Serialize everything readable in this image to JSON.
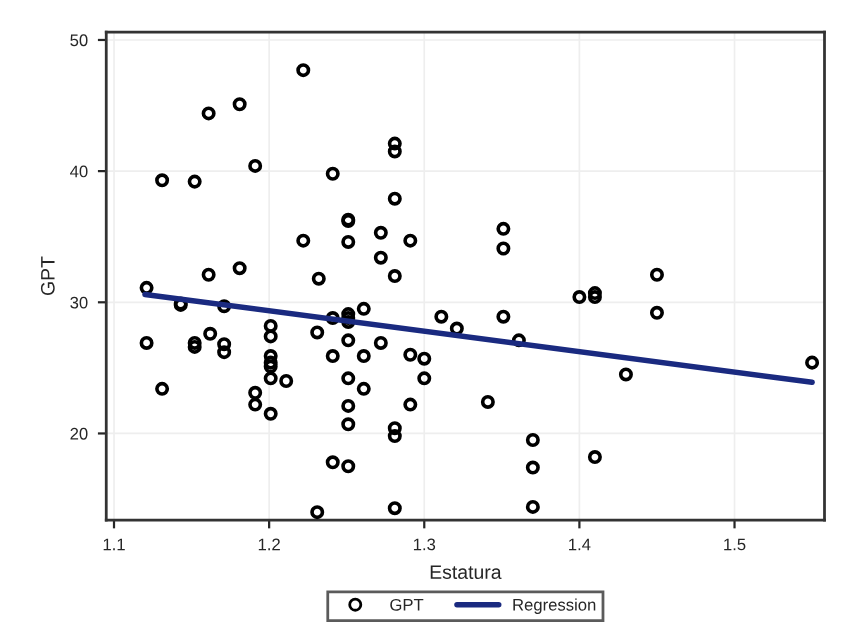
{
  "chart_data": {
    "type": "scatter",
    "xlabel": "Estatura",
    "ylabel": "GPT",
    "xlim": [
      1.095,
      1.558
    ],
    "ylim": [
      13.4,
      50.6
    ],
    "xticks": [
      1.1,
      1.2,
      1.3,
      1.4,
      1.5
    ],
    "yticks": [
      20,
      30,
      40,
      50
    ],
    "grid": true,
    "legend": "bottom",
    "series": [
      {
        "name": "GPT",
        "marker": "circle",
        "color": "#000000",
        "x": [
          1.131,
          1.152,
          1.161,
          1.181,
          1.191,
          1.222,
          1.241,
          1.281,
          1.281,
          1.281,
          1.251,
          1.251,
          1.222,
          1.251,
          1.272,
          1.291,
          1.272,
          1.161,
          1.181,
          1.232,
          1.281,
          1.121,
          1.143,
          1.143,
          1.171,
          1.121,
          1.131,
          1.152,
          1.152,
          1.162,
          1.171,
          1.171,
          1.201,
          1.201,
          1.201,
          1.201,
          1.201,
          1.201,
          1.201,
          1.191,
          1.191,
          1.211,
          1.231,
          1.231,
          1.241,
          1.241,
          1.241,
          1.251,
          1.251,
          1.251,
          1.251,
          1.251,
          1.251,
          1.251,
          1.251,
          1.261,
          1.261,
          1.261,
          1.272,
          1.281,
          1.281,
          1.281,
          1.291,
          1.291,
          1.3,
          1.3,
          1.311,
          1.321,
          1.351,
          1.361,
          1.341,
          1.37,
          1.37,
          1.37,
          1.4,
          1.41,
          1.41,
          1.41,
          1.43,
          1.45,
          1.55,
          1.351,
          1.351,
          1.45
        ],
        "values": [
          39.3,
          39.2,
          44.4,
          45.1,
          40.4,
          47.7,
          39.8,
          42.1,
          41.5,
          37.9,
          36.3,
          36.2,
          34.7,
          34.6,
          35.3,
          34.7,
          33.4,
          32.1,
          32.6,
          31.8,
          32.0,
          31.1,
          29.8,
          29.9,
          29.7,
          26.9,
          23.4,
          26.9,
          26.6,
          27.6,
          26.8,
          26.2,
          28.2,
          27.4,
          25.9,
          25.4,
          25.1,
          24.2,
          21.5,
          23.1,
          22.2,
          24.0,
          27.7,
          14.0,
          28.8,
          25.9,
          17.8,
          29.1,
          28.8,
          28.5,
          27.1,
          24.2,
          22.1,
          20.7,
          17.5,
          29.5,
          25.9,
          23.4,
          26.9,
          20.4,
          19.8,
          14.3,
          26.0,
          22.2,
          25.7,
          24.2,
          28.9,
          28.0,
          28.9,
          27.1,
          22.4,
          19.5,
          17.4,
          14.4,
          30.4,
          30.7,
          30.4,
          18.2,
          24.5,
          29.2,
          25.4,
          35.6,
          34.1,
          32.1
        ]
      },
      {
        "name": "Regression",
        "type": "line",
        "line_style": "solid",
        "color": "#1a2a80",
        "x": [
          1.12,
          1.55
        ],
        "values": [
          30.6,
          23.9
        ]
      }
    ]
  }
}
